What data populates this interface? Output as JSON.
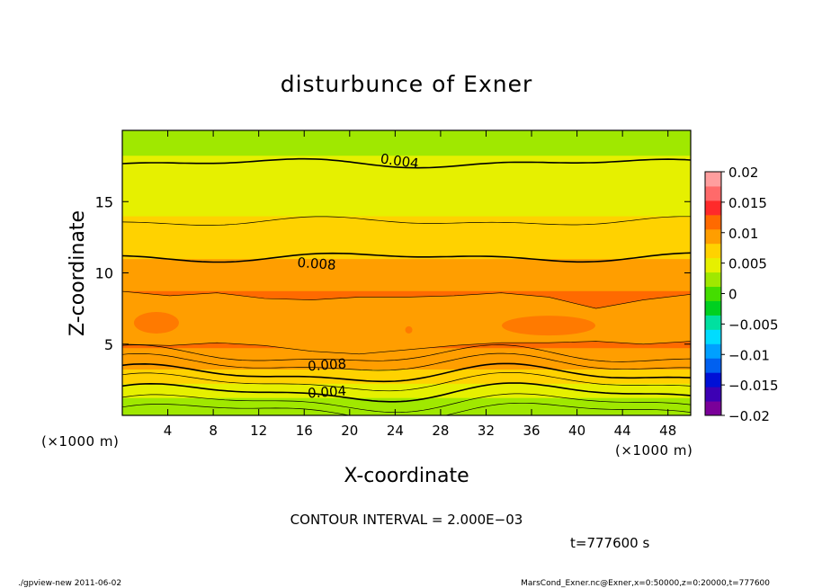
{
  "chart_data": {
    "type": "heatmap",
    "title": "disturbunce of Exner",
    "xlabel": "X-coordinate",
    "ylabel": "Z-coordinate",
    "x_unit_left": "(×1000 m)",
    "x_unit_right": "(×1000 m)",
    "xlim": [
      0,
      50
    ],
    "ylim": [
      0,
      20
    ],
    "xticks": [
      4,
      8,
      12,
      16,
      20,
      24,
      28,
      32,
      36,
      40,
      44,
      48
    ],
    "xtick_labels": [
      "4",
      "8",
      "12",
      "16",
      "20",
      "24",
      "28",
      "32",
      "36",
      "40",
      "44",
      "48"
    ],
    "yticks": [
      5,
      10,
      15
    ],
    "ytick_labels": [
      "5",
      "10",
      "15"
    ],
    "z_profile": {
      "z": [
        0,
        0.5,
        1,
        1.5,
        2,
        2.5,
        3,
        3.5,
        4,
        4.5,
        5,
        5.5,
        6,
        6.5,
        7,
        7.5,
        8,
        8.5,
        9,
        10,
        11,
        12,
        13,
        14,
        15,
        16,
        17,
        18,
        19,
        20
      ],
      "value": [
        0.001,
        0.002,
        0.003,
        0.004,
        0.005,
        0.0062,
        0.0075,
        0.0085,
        0.0095,
        0.0103,
        0.0112,
        0.0119,
        0.0125,
        0.0126,
        0.0124,
        0.012,
        0.0114,
        0.0109,
        0.0104,
        0.0095,
        0.0082,
        0.0072,
        0.0066,
        0.0058,
        0.0052,
        0.0046,
        0.0041,
        0.0036,
        0.0032,
        0.003
      ]
    },
    "contour_labels": [
      {
        "text": "0.004",
        "x": 24.4,
        "z": 17.9,
        "rotate": 8
      },
      {
        "text": "0.008",
        "x": 17.1,
        "z": 10.7,
        "rotate": 4
      },
      {
        "text": "0.008",
        "x": 18.0,
        "z": 3.6,
        "rotate": -4
      },
      {
        "text": "0.004",
        "x": 18.0,
        "z": 1.7,
        "rotate": -4
      }
    ],
    "colorbar": {
      "min": -0.02,
      "max": 0.02,
      "ticks": [
        "0.02",
        "0.015",
        "0.01",
        "0.005",
        "0",
        "−0.005",
        "−0.01",
        "−0.015",
        "−0.02"
      ],
      "colors": [
        "#7a0099",
        "#3d00b4",
        "#0010d6",
        "#0060f0",
        "#00a0ff",
        "#00dcff",
        "#00e0a0",
        "#00d020",
        "#44dd00",
        "#a0e800",
        "#e6f000",
        "#ffd200",
        "#ff9e00",
        "#ff6a00",
        "#ff2a2a",
        "#ff6a6a",
        "#ff9e9e"
      ]
    },
    "contour_interval": "CONTOUR INTERVAL = 2.000E−03",
    "time": "t=777600 s"
  },
  "footer": {
    "left": "./gpview-new   2011-06-02",
    "right": "MarsCond_Exner.nc@Exner,x=0:50000,z=0:20000,t=777600"
  }
}
